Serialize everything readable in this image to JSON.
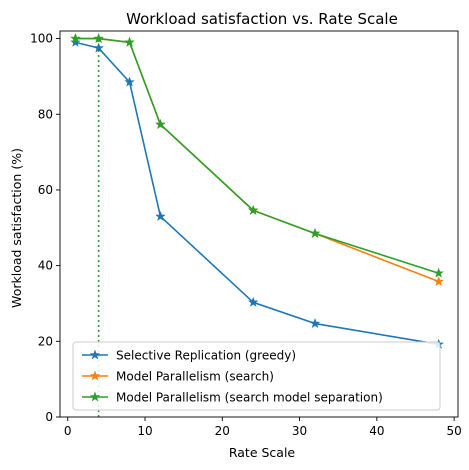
{
  "chart_data": {
    "type": "line",
    "title": "Workload satisfaction vs. Rate Scale",
    "xlabel": "Rate Scale",
    "ylabel": "Workload satisfaction (%)",
    "xlim": [
      -1,
      50.5
    ],
    "ylim": [
      0,
      102
    ],
    "xticks": [
      0,
      10,
      20,
      30,
      40,
      50
    ],
    "yticks": [
      0,
      20,
      40,
      60,
      80,
      100
    ],
    "x": [
      1,
      4,
      8,
      12,
      24,
      32,
      48
    ],
    "series": [
      {
        "name": "Selective Replication (greedy)",
        "color": "#1f77b4",
        "values": [
          99.0,
          97.5,
          88.5,
          53.0,
          30.3,
          24.7,
          19.2
        ]
      },
      {
        "name": "Model Parallelism (search)",
        "color": "#ff7f0e",
        "values": [
          100.0,
          100.0,
          99.0,
          77.3,
          54.6,
          48.5,
          35.8
        ]
      },
      {
        "name": "Model Parallelism (search model separation)",
        "color": "#2ca02c",
        "values": [
          100.0,
          100.0,
          99.0,
          77.3,
          54.6,
          48.5,
          38.0
        ]
      }
    ],
    "reference_line": {
      "type": "vertical",
      "x": 4,
      "style": "dotted",
      "color": "#2ca02c"
    },
    "marker": "star",
    "grid": false,
    "legend_position": "lower-left"
  }
}
